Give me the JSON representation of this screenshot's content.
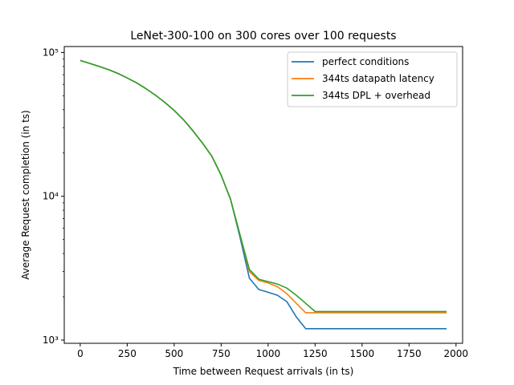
{
  "chart_data": {
    "type": "line",
    "title": "LeNet-300-100 on 300 cores over 100 requests",
    "xlabel": "Time between Request arrivals (in ts)",
    "ylabel": "Average Request completion (in ts)",
    "xlim": [
      -85,
      2035
    ],
    "ylim": [
      950,
      110000
    ],
    "yscale": "log",
    "grid": false,
    "legend_position": "top-right",
    "xticks": [
      0,
      250,
      500,
      750,
      1000,
      1250,
      1500,
      1750,
      2000
    ],
    "xtick_labels": [
      "0",
      "250",
      "500",
      "750",
      "1000",
      "1250",
      "1500",
      "1750",
      "2000"
    ],
    "yticks": [
      1000,
      10000,
      100000
    ],
    "ytick_labels": [
      "10³",
      "10⁴",
      "10⁵"
    ],
    "series": [
      {
        "name": "perfect conditions",
        "color": "#1f77b4",
        "x": [
          0,
          50,
          100,
          150,
          200,
          250,
          300,
          350,
          400,
          450,
          500,
          550,
          600,
          650,
          700,
          750,
          800,
          850,
          900,
          950,
          1000,
          1050,
          1100,
          1150,
          1200,
          1250,
          1300,
          1350,
          1400,
          1450,
          1500,
          1550,
          1600,
          1650,
          1700,
          1750,
          1800,
          1850,
          1900,
          1950
        ],
        "y": [
          88000,
          84000,
          80000,
          76000,
          71500,
          66500,
          61500,
          56000,
          50500,
          45000,
          39500,
          34000,
          28500,
          23500,
          19000,
          14000,
          9500,
          5200,
          2700,
          2250,
          2150,
          2050,
          1850,
          1450,
          1200,
          1200,
          1200,
          1200,
          1200,
          1200,
          1200,
          1200,
          1200,
          1200,
          1200,
          1200,
          1200,
          1200,
          1200,
          1200
        ]
      },
      {
        "name": "344ts datapath latency",
        "color": "#ff7f0e",
        "x": [
          0,
          50,
          100,
          150,
          200,
          250,
          300,
          350,
          400,
          450,
          500,
          550,
          600,
          650,
          700,
          750,
          800,
          850,
          900,
          950,
          1000,
          1050,
          1100,
          1150,
          1200,
          1250,
          1300,
          1350,
          1400,
          1450,
          1500,
          1550,
          1600,
          1650,
          1700,
          1750,
          1800,
          1850,
          1900,
          1950
        ],
        "y": [
          88000,
          84000,
          80000,
          76000,
          71500,
          66500,
          61500,
          56000,
          50500,
          45000,
          39500,
          34000,
          28500,
          23500,
          19000,
          14000,
          9500,
          5400,
          3000,
          2600,
          2500,
          2350,
          2100,
          1800,
          1550,
          1550,
          1550,
          1550,
          1550,
          1550,
          1550,
          1550,
          1550,
          1550,
          1550,
          1550,
          1550,
          1550,
          1550,
          1550
        ]
      },
      {
        "name": "344ts DPL + overhead",
        "color": "#2ca02c",
        "x": [
          0,
          50,
          100,
          150,
          200,
          250,
          300,
          350,
          400,
          450,
          500,
          550,
          600,
          650,
          700,
          750,
          800,
          850,
          900,
          950,
          1000,
          1050,
          1100,
          1150,
          1200,
          1250,
          1300,
          1350,
          1400,
          1450,
          1500,
          1550,
          1600,
          1650,
          1700,
          1750,
          1800,
          1850,
          1900,
          1950
        ],
        "y": [
          88000,
          84000,
          80000,
          76000,
          71500,
          66500,
          61500,
          56000,
          50500,
          45000,
          39500,
          34000,
          28500,
          23500,
          19000,
          14000,
          9500,
          5400,
          3100,
          2650,
          2550,
          2450,
          2300,
          2050,
          1800,
          1580,
          1580,
          1580,
          1580,
          1580,
          1580,
          1580,
          1580,
          1580,
          1580,
          1580,
          1580,
          1580,
          1580,
          1580
        ]
      }
    ]
  }
}
